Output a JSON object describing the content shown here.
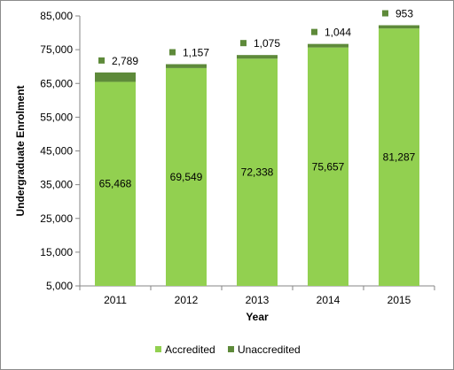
{
  "chart_data": {
    "type": "bar",
    "stacked": true,
    "title": "",
    "xlabel": "Year",
    "ylabel": "Undergraduate Enrolment",
    "categories": [
      "2011",
      "2012",
      "2013",
      "2014",
      "2015"
    ],
    "series": [
      {
        "name": "Accredited",
        "values": [
          65468,
          69549,
          72338,
          75657,
          81287
        ],
        "color": "#92d050"
      },
      {
        "name": "Unaccredited",
        "values": [
          2789,
          1157,
          1075,
          1044,
          953
        ],
        "color": "#5e8a3a"
      }
    ],
    "data_labels": {
      "Accredited": [
        "65,468",
        "69,549",
        "72,338",
        "75,657",
        "81,287"
      ],
      "Unaccredited": [
        "2,789",
        "1,157",
        "1,075",
        "1,044",
        "953"
      ]
    },
    "ylim": [
      5000,
      85000
    ],
    "yticks": [
      5000,
      15000,
      25000,
      35000,
      45000,
      55000,
      65000,
      75000,
      85000
    ],
    "ytick_labels": [
      "5,000",
      "15,000",
      "25,000",
      "35,000",
      "45,000",
      "55,000",
      "65,000",
      "75,000",
      "85,000"
    ],
    "grid": false,
    "legend": "bottom"
  }
}
